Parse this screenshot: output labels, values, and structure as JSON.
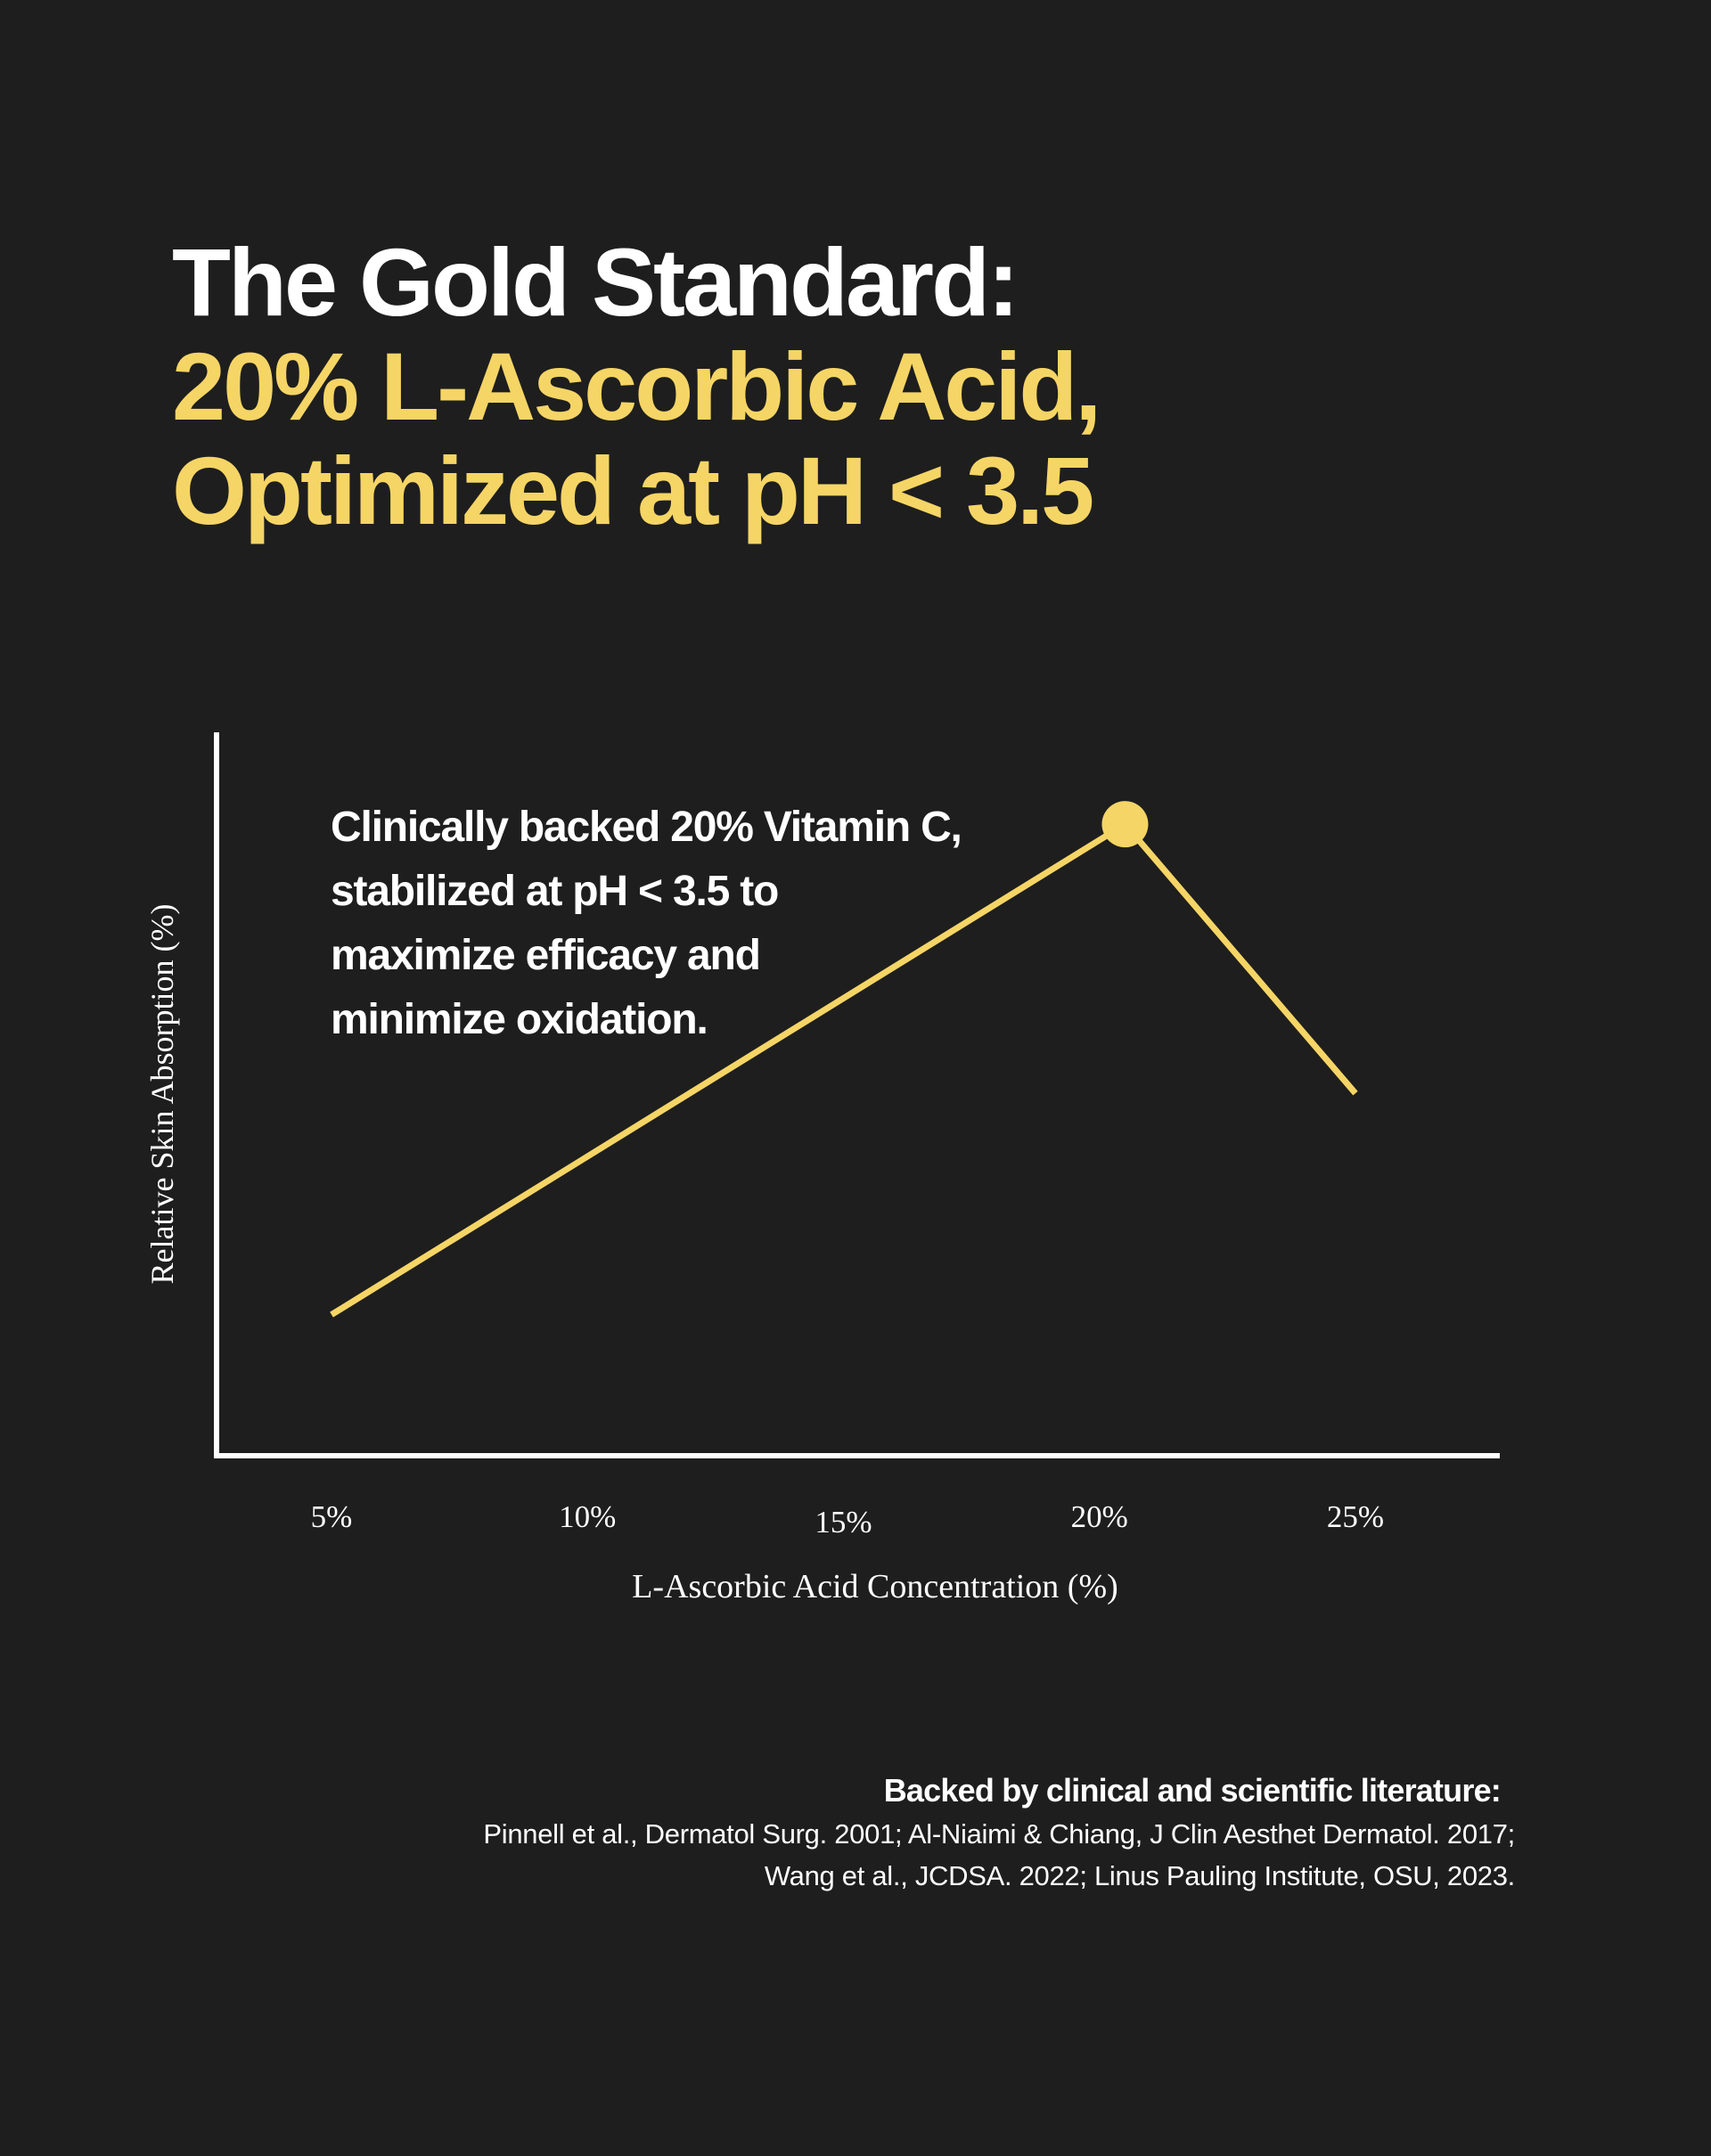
{
  "title": {
    "line1": "The Gold Standard:",
    "line2": "20% L-Ascorbic Acid,",
    "line3": "Optimized at pH < 3.5"
  },
  "colors": {
    "background": "#1e1e1e",
    "accent": "#f5d565",
    "text": "#ffffff"
  },
  "chart_data": {
    "type": "line",
    "title": "",
    "xlabel": "L-Ascorbic Acid Concentration (%)",
    "ylabel": "Relative Skin Absorption (%)",
    "x_ticks": [
      5,
      10,
      15,
      20,
      25
    ],
    "x_tick_labels": [
      "5%",
      "10%",
      "15%",
      "20%",
      "25%"
    ],
    "xlim": [
      3.8,
      27.8
    ],
    "ylim": [
      0,
      100
    ],
    "y_ticks": [],
    "grid": false,
    "legend": "none",
    "series": [
      {
        "name": "Relative Skin Absorption",
        "x": [
          5,
          20.5,
          25
        ],
        "y": [
          19.5,
          87.3,
          50.1
        ],
        "color": "#f5d565",
        "highlight_index": 1
      }
    ],
    "annotation": [
      "Clinically backed 20% Vitamin C,",
      "stabilized at pH < 3.5 to",
      "maximize efficacy and",
      "minimize oxidation."
    ]
  },
  "footer": {
    "heading": "Backed by clinical and scientific literature:",
    "citations": [
      "Pinnell et al., Dermatol Surg. 2001; Al-Niaimi & Chiang, J Clin Aesthet Dermatol. 2017;",
      "Wang et al., JCDSA. 2022; Linus Pauling Institute, OSU, 2023."
    ]
  }
}
